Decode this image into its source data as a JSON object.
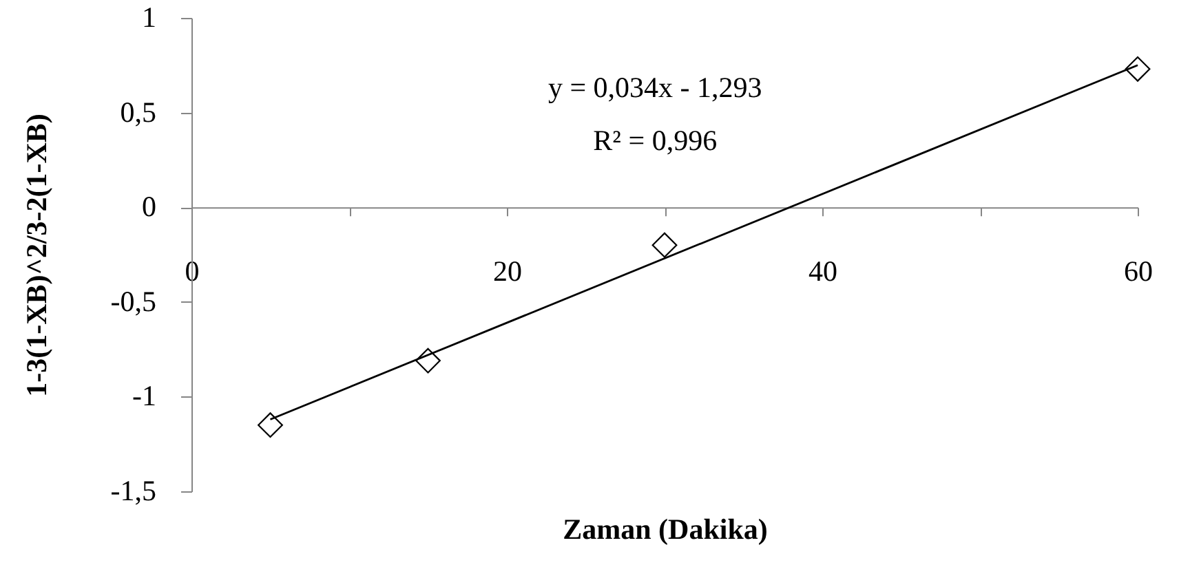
{
  "chart_data": {
    "type": "scatter",
    "xlabel": "Zaman (Dakika)",
    "ylabel": "1-3(1-XB)^2/3-2(1-XB)",
    "annotations": [
      "y = 0,034x - 1,293",
      "R² = 0,996"
    ],
    "xlim": [
      0,
      60
    ],
    "ylim": [
      -1.5,
      1
    ],
    "xticks": [
      0,
      {
        "value": 10,
        "label": null
      },
      20,
      {
        "value": 30,
        "label": null
      },
      40,
      {
        "value": 50,
        "label": null
      },
      60
    ],
    "yticks": [
      {
        "value": -1.5,
        "label": "-1,5"
      },
      -1,
      {
        "value": -0.5,
        "label": "-0,5"
      },
      0,
      {
        "value": 0.5,
        "label": "0,5"
      },
      1
    ],
    "grid": false,
    "marker": "diamond",
    "series": [
      {
        "color": "#000000",
        "x": [
          5,
          15,
          30,
          60
        ],
        "values": [
          -1.15,
          -0.81,
          -0.2,
          0.73
        ]
      },
      {
        "type": "line",
        "color": "#000000",
        "x": [
          5,
          60
        ],
        "values": [
          -1.12,
          0.75
        ],
        "marker": "none",
        "line_style": "solid"
      }
    ]
  }
}
